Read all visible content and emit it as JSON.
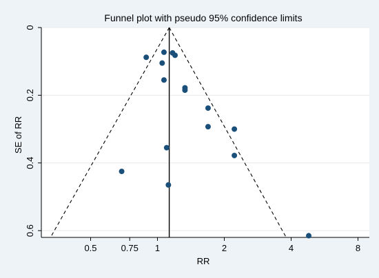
{
  "chart_data": {
    "type": "scatter",
    "title": "Funnel plot with pseudo 95% confidence limits",
    "xlabel": "RR",
    "ylabel": "SE of RR",
    "x_scale": "log",
    "y_reversed": true,
    "xlim": [
      0.3,
      9
    ],
    "ylim": [
      0,
      0.62
    ],
    "x_ticks": [
      0.5,
      0.75,
      1,
      2,
      4,
      8
    ],
    "x_tick_labels": [
      "0.5",
      "0.75",
      "1",
      "2",
      "4",
      "8"
    ],
    "y_ticks": [
      0,
      0.2,
      0.4,
      0.6
    ],
    "y_tick_labels": [
      "0",
      "0.2",
      "0.4",
      "0.6"
    ],
    "pooled_rr": 1.13,
    "funnel_base_se": 0.62,
    "funnel_left_rr": 0.33,
    "funnel_right_rr": 3.8,
    "point_color": "#1a4f7a",
    "points": [
      {
        "x": 0.89,
        "y": 0.088
      },
      {
        "x": 1.07,
        "y": 0.073
      },
      {
        "x": 1.05,
        "y": 0.105
      },
      {
        "x": 1.17,
        "y": 0.075
      },
      {
        "x": 1.2,
        "y": 0.082
      },
      {
        "x": 1.07,
        "y": 0.155
      },
      {
        "x": 1.33,
        "y": 0.178
      },
      {
        "x": 1.33,
        "y": 0.185
      },
      {
        "x": 1.69,
        "y": 0.238
      },
      {
        "x": 1.69,
        "y": 0.293
      },
      {
        "x": 2.22,
        "y": 0.3
      },
      {
        "x": 2.22,
        "y": 0.378
      },
      {
        "x": 1.1,
        "y": 0.355
      },
      {
        "x": 0.69,
        "y": 0.425
      },
      {
        "x": 1.12,
        "y": 0.465
      },
      {
        "x": 4.8,
        "y": 0.615
      }
    ]
  }
}
